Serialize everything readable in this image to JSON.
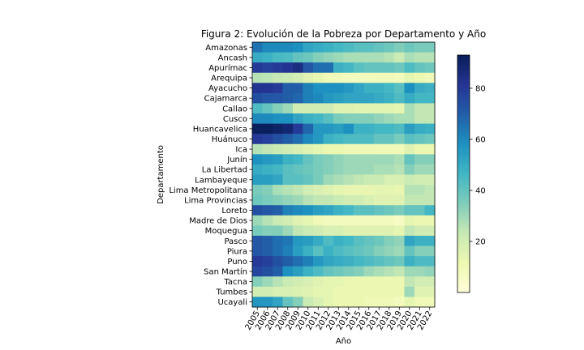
{
  "chart_data": {
    "type": "heatmap",
    "title": "Figura 2: Evolución de la Pobreza por Departamento y Año",
    "xlabel": "Año",
    "ylabel": "Departamento",
    "x": [
      "2005",
      "2006",
      "2007",
      "2008",
      "2009",
      "2010",
      "2011",
      "2012",
      "2013",
      "2014",
      "2015",
      "2016",
      "2017",
      "2018",
      "2019",
      "2020",
      "2021",
      "2022"
    ],
    "y": [
      "Amazonas",
      "Ancash",
      "Apurímac",
      "Arequipa",
      "Ayacucho",
      "Cajamarca",
      "Callao",
      "Cusco",
      "Huancavelica",
      "Huánuco",
      "Ica",
      "Junín",
      "La Libertad",
      "Lambayeque",
      "Lima Metropolitana",
      "Lima Provincias",
      "Loreto",
      "Madre de Dios",
      "Moquegua",
      "Pasco",
      "Piura",
      "Puno",
      "San Martín",
      "Tacna",
      "Tumbes",
      "Ucayali"
    ],
    "colorbar": {
      "colormap": "YlGnBu",
      "min": 0,
      "max": 93,
      "ticks": [
        20,
        40,
        60,
        80
      ]
    },
    "values": [
      [
        65,
        60,
        60,
        60,
        58,
        52,
        50,
        48,
        46,
        44,
        42,
        42,
        40,
        38,
        35,
        38,
        36,
        36
      ],
      [
        50,
        48,
        45,
        44,
        40,
        38,
        34,
        32,
        30,
        28,
        28,
        28,
        28,
        26,
        22,
        28,
        26,
        26
      ],
      [
        80,
        78,
        80,
        82,
        85,
        72,
        66,
        66,
        48,
        46,
        42,
        40,
        40,
        40,
        38,
        44,
        40,
        38
      ],
      [
        26,
        25,
        23,
        22,
        20,
        16,
        13,
        10,
        9,
        8,
        8,
        8,
        9,
        9,
        8,
        14,
        12,
        10
      ],
      [
        82,
        82,
        80,
        70,
        70,
        62,
        58,
        58,
        58,
        56,
        52,
        48,
        48,
        46,
        42,
        58,
        50,
        48
      ],
      [
        74,
        72,
        72,
        70,
        68,
        62,
        60,
        56,
        54,
        52,
        52,
        52,
        50,
        48,
        44,
        50,
        46,
        46
      ],
      [
        44,
        40,
        34,
        30,
        20,
        20,
        20,
        20,
        16,
        16,
        15,
        15,
        15,
        15,
        14,
        28,
        24,
        24
      ],
      [
        60,
        60,
        58,
        58,
        52,
        48,
        46,
        42,
        36,
        34,
        34,
        34,
        32,
        30,
        28,
        28,
        24,
        24
      ],
      [
        92,
        92,
        90,
        88,
        80,
        68,
        56,
        56,
        54,
        58,
        48,
        48,
        46,
        46,
        44,
        54,
        50,
        48
      ],
      [
        80,
        78,
        74,
        70,
        66,
        60,
        56,
        48,
        46,
        44,
        44,
        44,
        40,
        40,
        36,
        42,
        40,
        38
      ],
      [
        26,
        24,
        22,
        20,
        18,
        16,
        14,
        12,
        12,
        10,
        10,
        10,
        10,
        10,
        10,
        16,
        12,
        12
      ],
      [
        58,
        56,
        54,
        48,
        46,
        40,
        36,
        34,
        32,
        30,
        30,
        30,
        30,
        30,
        28,
        40,
        34,
        34
      ],
      [
        50,
        48,
        46,
        42,
        40,
        38,
        36,
        34,
        32,
        30,
        30,
        30,
        28,
        28,
        26,
        34,
        30,
        30
      ],
      [
        54,
        54,
        52,
        42,
        42,
        40,
        36,
        30,
        28,
        26,
        24,
        22,
        22,
        18,
        18,
        22,
        20,
        20
      ],
      [
        36,
        34,
        28,
        26,
        24,
        20,
        18,
        16,
        14,
        13,
        13,
        13,
        14,
        14,
        13,
        26,
        26,
        24
      ],
      [
        38,
        36,
        34,
        32,
        30,
        26,
        24,
        24,
        22,
        20,
        20,
        18,
        16,
        16,
        16,
        24,
        24,
        24
      ],
      [
        74,
        72,
        70,
        62,
        60,
        58,
        54,
        52,
        48,
        46,
        42,
        42,
        40,
        38,
        36,
        40,
        40,
        46
      ],
      [
        30,
        26,
        22,
        20,
        16,
        14,
        10,
        8,
        8,
        8,
        8,
        8,
        8,
        8,
        6,
        14,
        12,
        12
      ],
      [
        36,
        34,
        34,
        30,
        24,
        22,
        20,
        18,
        18,
        16,
        16,
        16,
        16,
        16,
        14,
        24,
        20,
        20
      ],
      [
        72,
        70,
        66,
        64,
        56,
        54,
        50,
        44,
        48,
        46,
        42,
        40,
        38,
        34,
        32,
        52,
        48,
        48
      ],
      [
        72,
        70,
        66,
        62,
        54,
        48,
        42,
        48,
        44,
        42,
        40,
        38,
        34,
        32,
        30,
        40,
        34,
        34
      ],
      [
        80,
        78,
        74,
        70,
        66,
        62,
        56,
        52,
        50,
        48,
        46,
        44,
        42,
        40,
        38,
        48,
        44,
        44
      ],
      [
        76,
        74,
        70,
        58,
        54,
        48,
        44,
        40,
        38,
        36,
        34,
        30,
        28,
        26,
        24,
        30,
        30,
        32
      ],
      [
        34,
        30,
        26,
        22,
        20,
        18,
        16,
        14,
        14,
        12,
        12,
        12,
        12,
        12,
        12,
        24,
        20,
        20
      ],
      [
        20,
        20,
        18,
        18,
        17,
        16,
        14,
        14,
        12,
        12,
        12,
        12,
        12,
        12,
        12,
        30,
        16,
        16
      ],
      [
        56,
        56,
        52,
        40,
        34,
        22,
        18,
        14,
        12,
        12,
        12,
        10,
        10,
        10,
        8,
        14,
        10,
        10
      ]
    ]
  }
}
